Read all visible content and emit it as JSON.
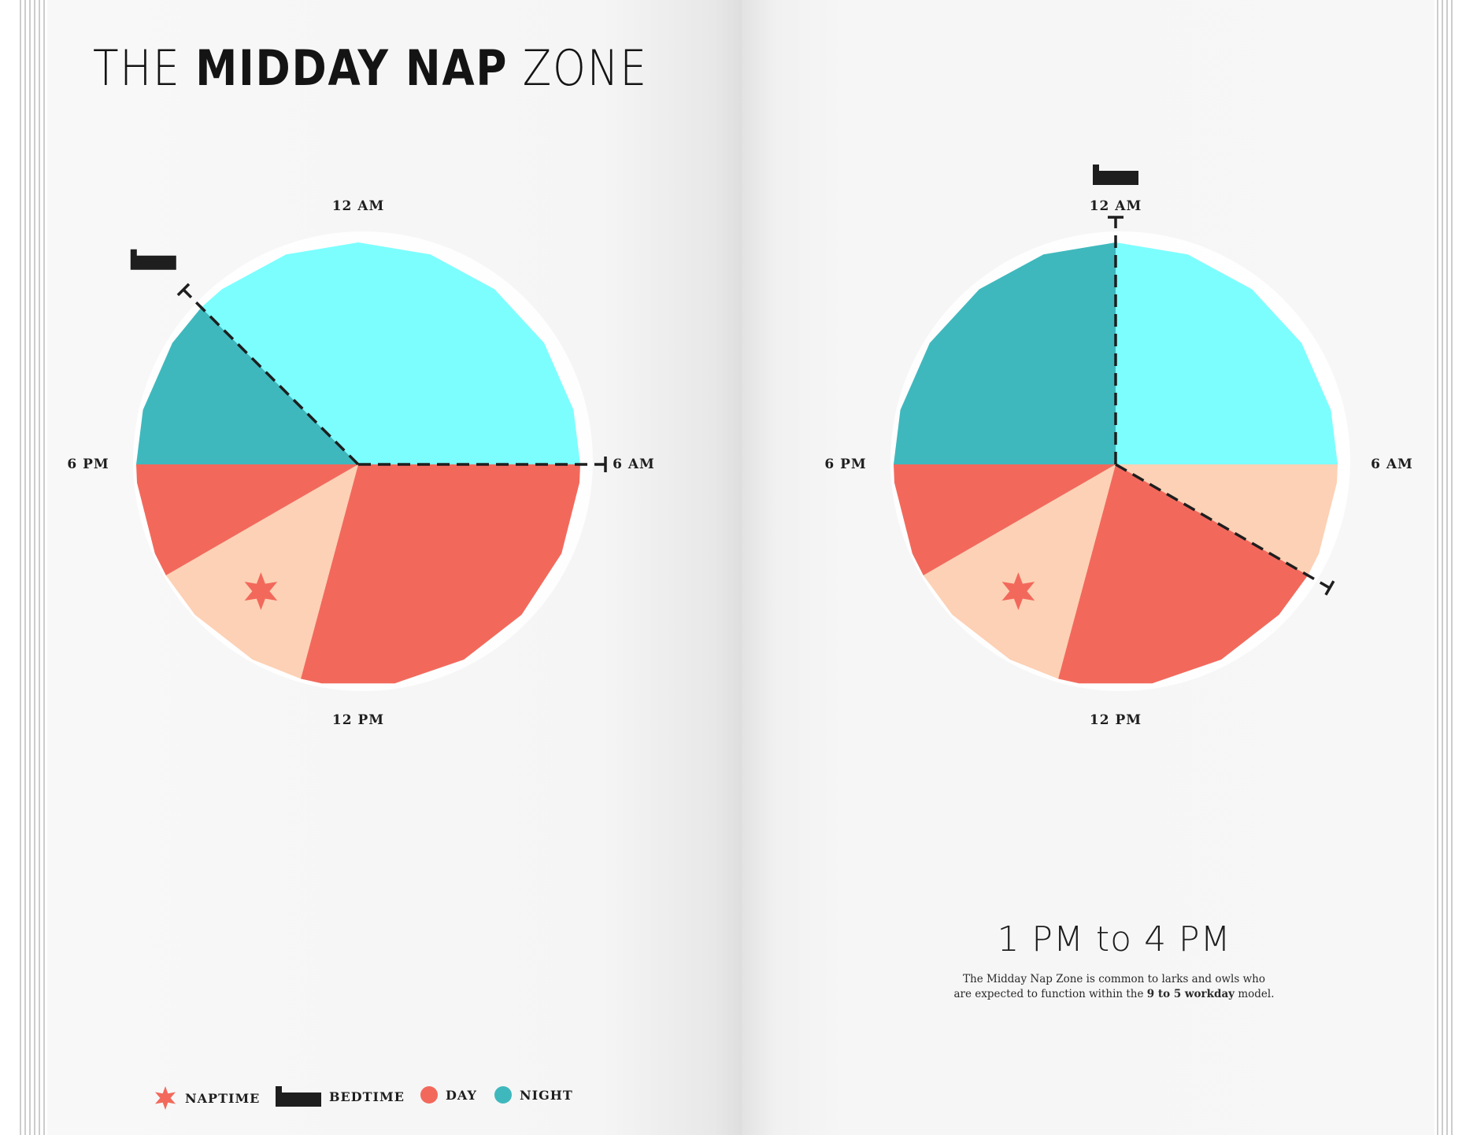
{
  "title": {
    "prefix": "THE",
    "bold": "MIDDAY NAP",
    "suffix": "ZONE"
  },
  "clock_labels": {
    "top": "12 AM",
    "right": "6 AM",
    "bottom": "12 PM",
    "left": "6 PM"
  },
  "headline": "1 PM to 4 PM",
  "caption": {
    "line1": "The Midday Nap Zone is common to larks and owls who",
    "line2_pre": "are expected to function within the",
    "line2_bold": "9 to 5 workday",
    "line2_post": "model."
  },
  "legend": [
    {
      "label": "NAPTIME",
      "icon": "star-icon"
    },
    {
      "label": "BEDTIME",
      "icon": "bed-icon"
    },
    {
      "label": "DAY",
      "icon": "day-dot"
    },
    {
      "label": "NIGHT",
      "icon": "night-dot"
    }
  ],
  "colors": {
    "night": "#3fb8bd",
    "night_light": "#7cfeff",
    "day": "#f2695c",
    "nap": "#fdd1b5",
    "ink": "#1e1e1e"
  },
  "chart_data": [
    {
      "type": "pie",
      "clock": "24-hour",
      "bedtime": "9 PM",
      "wake": "6 AM",
      "naptime": "1 PM to 4 PM",
      "segments": [
        {
          "from": 0,
          "to": 6,
          "color": "night_light"
        },
        {
          "from": 6,
          "to": 13,
          "color": "day"
        },
        {
          "from": 13,
          "to": 16,
          "color": "nap"
        },
        {
          "from": 16,
          "to": 18,
          "color": "day"
        },
        {
          "from": 18,
          "to": 21,
          "color": "night"
        },
        {
          "from": 21,
          "to": 24,
          "color": "night_light"
        }
      ]
    },
    {
      "type": "pie",
      "clock": "24-hour",
      "bedtime": "12 AM",
      "wake": "8 AM",
      "naptime": "1 PM to 4 PM",
      "segments": [
        {
          "from": 0,
          "to": 6,
          "color": "night_light"
        },
        {
          "from": 6,
          "to": 8,
          "color": "nap"
        },
        {
          "from": 8,
          "to": 13,
          "color": "day"
        },
        {
          "from": 13,
          "to": 16,
          "color": "nap"
        },
        {
          "from": 16,
          "to": 18,
          "color": "day"
        },
        {
          "from": 18,
          "to": 24,
          "color": "night"
        }
      ]
    }
  ]
}
